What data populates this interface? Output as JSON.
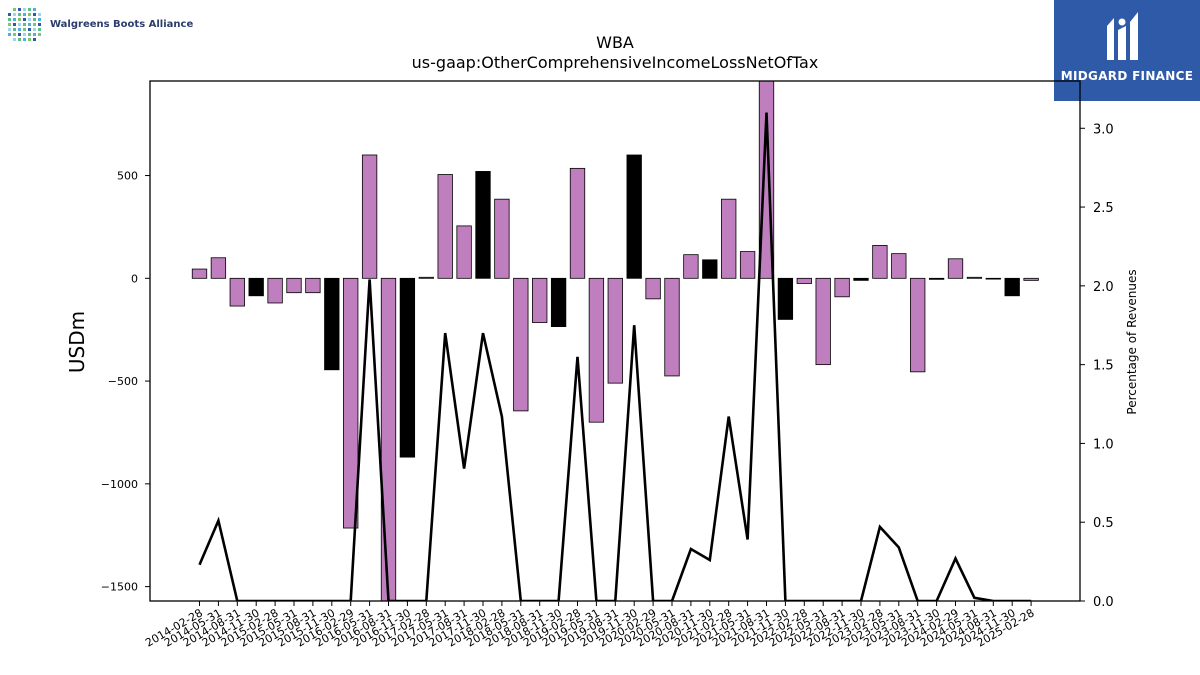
{
  "branding": {
    "left_logo_text": "Walgreens Boots Alliance",
    "right_logo_text": "MIDGARD FINANCE"
  },
  "chart_data": {
    "type": "bar",
    "title": "WBA",
    "subtitle": "us-gaap:OtherComprehensiveIncomeLossNetOfTax",
    "ylabel": "USDm",
    "y2label": "Percentage of Revenues",
    "ylim": [
      -1570,
      960
    ],
    "y2lim": [
      0,
      3.3
    ],
    "yticks": [
      -1500,
      -1000,
      -500,
      0,
      500
    ],
    "yticklabels": [
      "−1500",
      "−1000",
      "−500",
      "0",
      "500"
    ],
    "y2ticks": [
      0.0,
      0.5,
      1.0,
      1.5,
      2.0,
      2.5,
      3.0
    ],
    "y2ticklabels": [
      "0.0",
      "0.5",
      "1.0",
      "1.5",
      "2.0",
      "2.5",
      "3.0"
    ],
    "colors": {
      "positive_quarter": "#bf7fbf",
      "negative_quarter": "#000000",
      "line": "#000000"
    },
    "categories": [
      "2014-02-28",
      "2014-05-31",
      "2014-08-31",
      "2014-11-30",
      "2015-02-28",
      "2015-05-31",
      "2015-08-31",
      "2015-11-30",
      "2016-02-29",
      "2016-05-31",
      "2016-08-31",
      "2016-11-30",
      "2017-02-28",
      "2017-05-31",
      "2017-08-31",
      "2017-11-30",
      "2018-02-28",
      "2018-05-31",
      "2018-08-31",
      "2018-11-30",
      "2019-02-28",
      "2019-05-31",
      "2019-08-31",
      "2019-11-30",
      "2020-02-29",
      "2020-05-31",
      "2020-08-31",
      "2020-11-30",
      "2021-02-28",
      "2021-05-31",
      "2021-08-31",
      "2021-11-30",
      "2022-02-28",
      "2022-05-31",
      "2022-08-31",
      "2022-11-30",
      "2023-02-28",
      "2023-05-31",
      "2023-08-31",
      "2023-11-30",
      "2024-02-29",
      "2024-05-31",
      "2024-08-31",
      "2024-11-30",
      "2025-02-28"
    ],
    "series": [
      {
        "values": [
          45,
          100,
          -135,
          -85,
          -120,
          -70,
          -70,
          -445,
          -1215,
          600,
          -1600,
          -870,
          5,
          505,
          255,
          520,
          385,
          -645,
          -215,
          -235,
          535,
          -700,
          -510,
          600,
          -100,
          -475,
          115,
          90,
          385,
          130,
          1000,
          -200,
          -25,
          -420,
          -90,
          -10,
          160,
          120,
          -455,
          -5,
          95,
          5,
          -2,
          -85,
          -10
        ],
        "bar_colors": [
          "#bf7fbf",
          "#bf7fbf",
          "#bf7fbf",
          "#000000",
          "#bf7fbf",
          "#bf7fbf",
          "#bf7fbf",
          "#000000",
          "#bf7fbf",
          "#bf7fbf",
          "#bf7fbf",
          "#000000",
          "#bf7fbf",
          "#bf7fbf",
          "#bf7fbf",
          "#000000",
          "#bf7fbf",
          "#bf7fbf",
          "#bf7fbf",
          "#000000",
          "#bf7fbf",
          "#bf7fbf",
          "#bf7fbf",
          "#000000",
          "#bf7fbf",
          "#bf7fbf",
          "#bf7fbf",
          "#000000",
          "#bf7fbf",
          "#bf7fbf",
          "#bf7fbf",
          "#000000",
          "#bf7fbf",
          "#bf7fbf",
          "#bf7fbf",
          "#000000",
          "#bf7fbf",
          "#bf7fbf",
          "#bf7fbf",
          "#000000",
          "#bf7fbf",
          "#bf7fbf",
          "#bf7fbf",
          "#000000",
          "#bf7fbf"
        ]
      },
      {
        "axis": "right",
        "type": "line",
        "values": [
          0.23,
          0.51,
          0,
          0,
          0,
          0,
          0,
          0,
          0,
          2.04,
          0,
          0,
          0,
          1.7,
          0.84,
          1.7,
          1.17,
          0,
          0,
          0,
          1.55,
          0,
          0,
          1.75,
          0,
          0,
          0.33,
          0.26,
          1.17,
          0.39,
          3.1,
          0,
          0,
          0,
          0,
          0,
          0.47,
          0.34,
          0,
          0,
          0.27,
          0.02,
          0,
          0,
          0
        ]
      }
    ]
  }
}
